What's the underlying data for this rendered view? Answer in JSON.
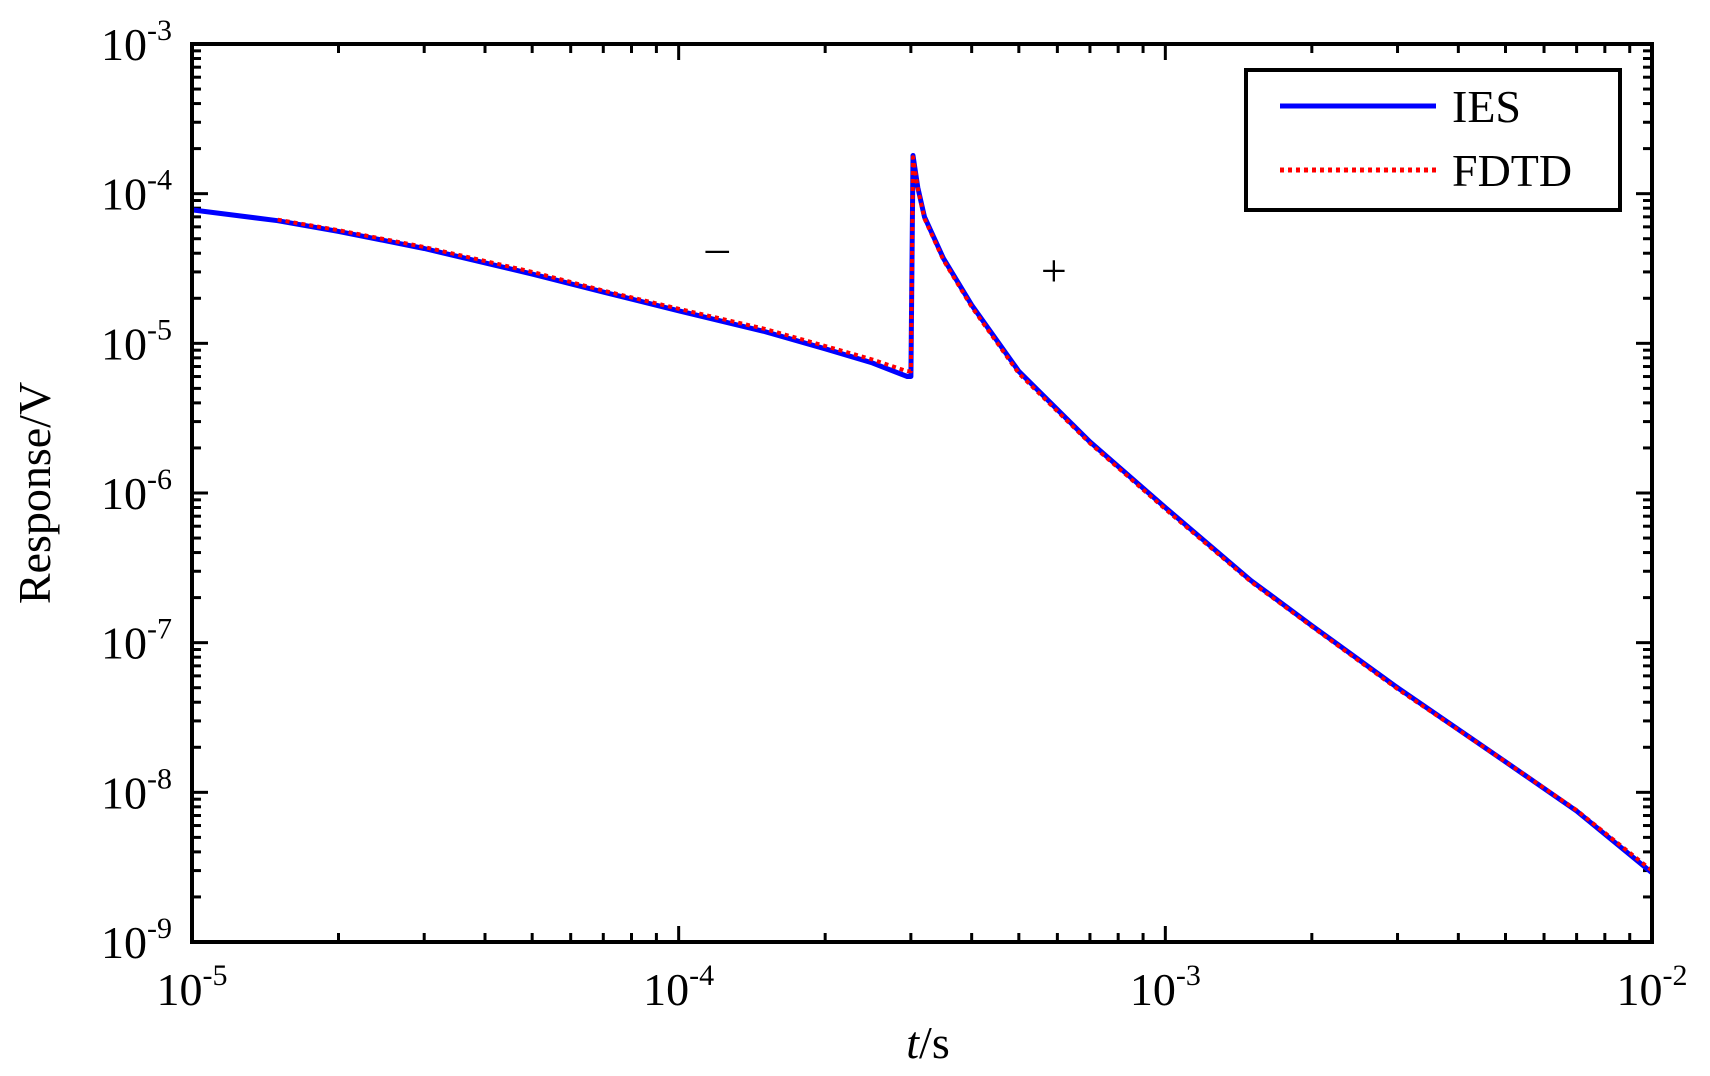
{
  "chart_data": {
    "type": "line",
    "xlabel_italic": "t",
    "xlabel_rest": "/s",
    "ylabel": "Response/V",
    "xscale": "log",
    "yscale": "log",
    "xlim": [
      1e-05,
      0.01
    ],
    "ylim": [
      1e-09,
      0.001
    ],
    "grid": false,
    "legend_position": "top-right",
    "x_ticks": [
      {
        "value": 1e-05,
        "base": "10",
        "exp": "-5"
      },
      {
        "value": 0.0001,
        "base": "10",
        "exp": "-4"
      },
      {
        "value": 0.001,
        "base": "10",
        "exp": "-3"
      },
      {
        "value": 0.01,
        "base": "10",
        "exp": "-2"
      }
    ],
    "y_ticks": [
      {
        "value": 1e-09,
        "base": "10",
        "exp": "-9"
      },
      {
        "value": 1e-08,
        "base": "10",
        "exp": "-8"
      },
      {
        "value": 1e-07,
        "base": "10",
        "exp": "-7"
      },
      {
        "value": 1e-06,
        "base": "10",
        "exp": "-6"
      },
      {
        "value": 1e-05,
        "base": "10",
        "exp": "-5"
      },
      {
        "value": 0.0001,
        "base": "10",
        "exp": "-4"
      },
      {
        "value": 0.001,
        "base": "10",
        "exp": "-3"
      }
    ],
    "series": [
      {
        "name": "IES",
        "color": "#0000ff",
        "style": "solid",
        "x": [
          1e-05,
          1.5e-05,
          2e-05,
          3e-05,
          5e-05,
          7e-05,
          0.0001,
          0.00015,
          0.0002,
          0.00025,
          0.000295,
          0.0003,
          0.000303,
          0.00031,
          0.00032,
          0.00035,
          0.0004,
          0.0005,
          0.0007,
          0.001,
          0.0015,
          0.002,
          0.003,
          0.005,
          0.007,
          0.01
        ],
        "y": [
          7.8e-05,
          6.6e-05,
          5.6e-05,
          4.3e-05,
          2.9e-05,
          2.2e-05,
          1.65e-05,
          1.2e-05,
          9.2e-06,
          7.4e-06,
          6e-06,
          6e-06,
          0.00018,
          0.00011,
          7e-05,
          3.7e-05,
          1.8e-05,
          6.5e-06,
          2.2e-06,
          8e-07,
          2.6e-07,
          1.3e-07,
          5e-08,
          1.6e-08,
          7.5e-09,
          2.9e-09
        ]
      },
      {
        "name": "FDTD",
        "color": "#ff0000",
        "style": "dotted",
        "x": [
          1.5e-05,
          2e-05,
          3e-05,
          5e-05,
          7e-05,
          0.0001,
          0.00015,
          0.0002,
          0.00025,
          0.000295,
          0.0003,
          0.000303,
          0.00031,
          0.00032,
          0.00035,
          0.0004,
          0.0005,
          0.0007,
          0.001,
          0.0015,
          0.002,
          0.003,
          0.005,
          0.007,
          0.01
        ],
        "y": [
          6.7e-05,
          5.7e-05,
          4.4e-05,
          3e-05,
          2.25e-05,
          1.7e-05,
          1.25e-05,
          9.6e-06,
          7.8e-06,
          6.5e-06,
          6.5e-06,
          0.000175,
          0.000108,
          6.8e-05,
          3.6e-05,
          1.75e-05,
          6.3e-06,
          2.15e-06,
          7.8e-07,
          2.55e-07,
          1.28e-07,
          4.9e-08,
          1.6e-08,
          7.6e-09,
          3e-09
        ]
      }
    ],
    "annotations": [
      {
        "text": "–",
        "x": 0.00012,
        "y": 4.3e-05
      },
      {
        "text": "+",
        "x": 0.00059,
        "y": 3e-05
      }
    ]
  }
}
